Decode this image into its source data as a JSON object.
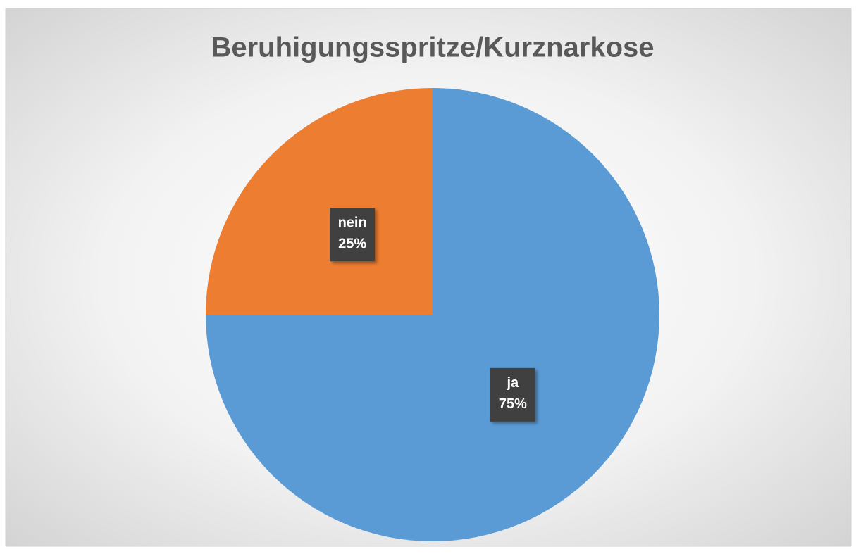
{
  "chart_data": {
    "type": "pie",
    "title": "Beruhigungsspritze/Kurznarkose",
    "categories": [
      "ja",
      "nein"
    ],
    "values": [
      75,
      25
    ],
    "value_labels": [
      "75%",
      "25%"
    ],
    "colors": [
      "#5b9bd5",
      "#ed7d31"
    ]
  }
}
